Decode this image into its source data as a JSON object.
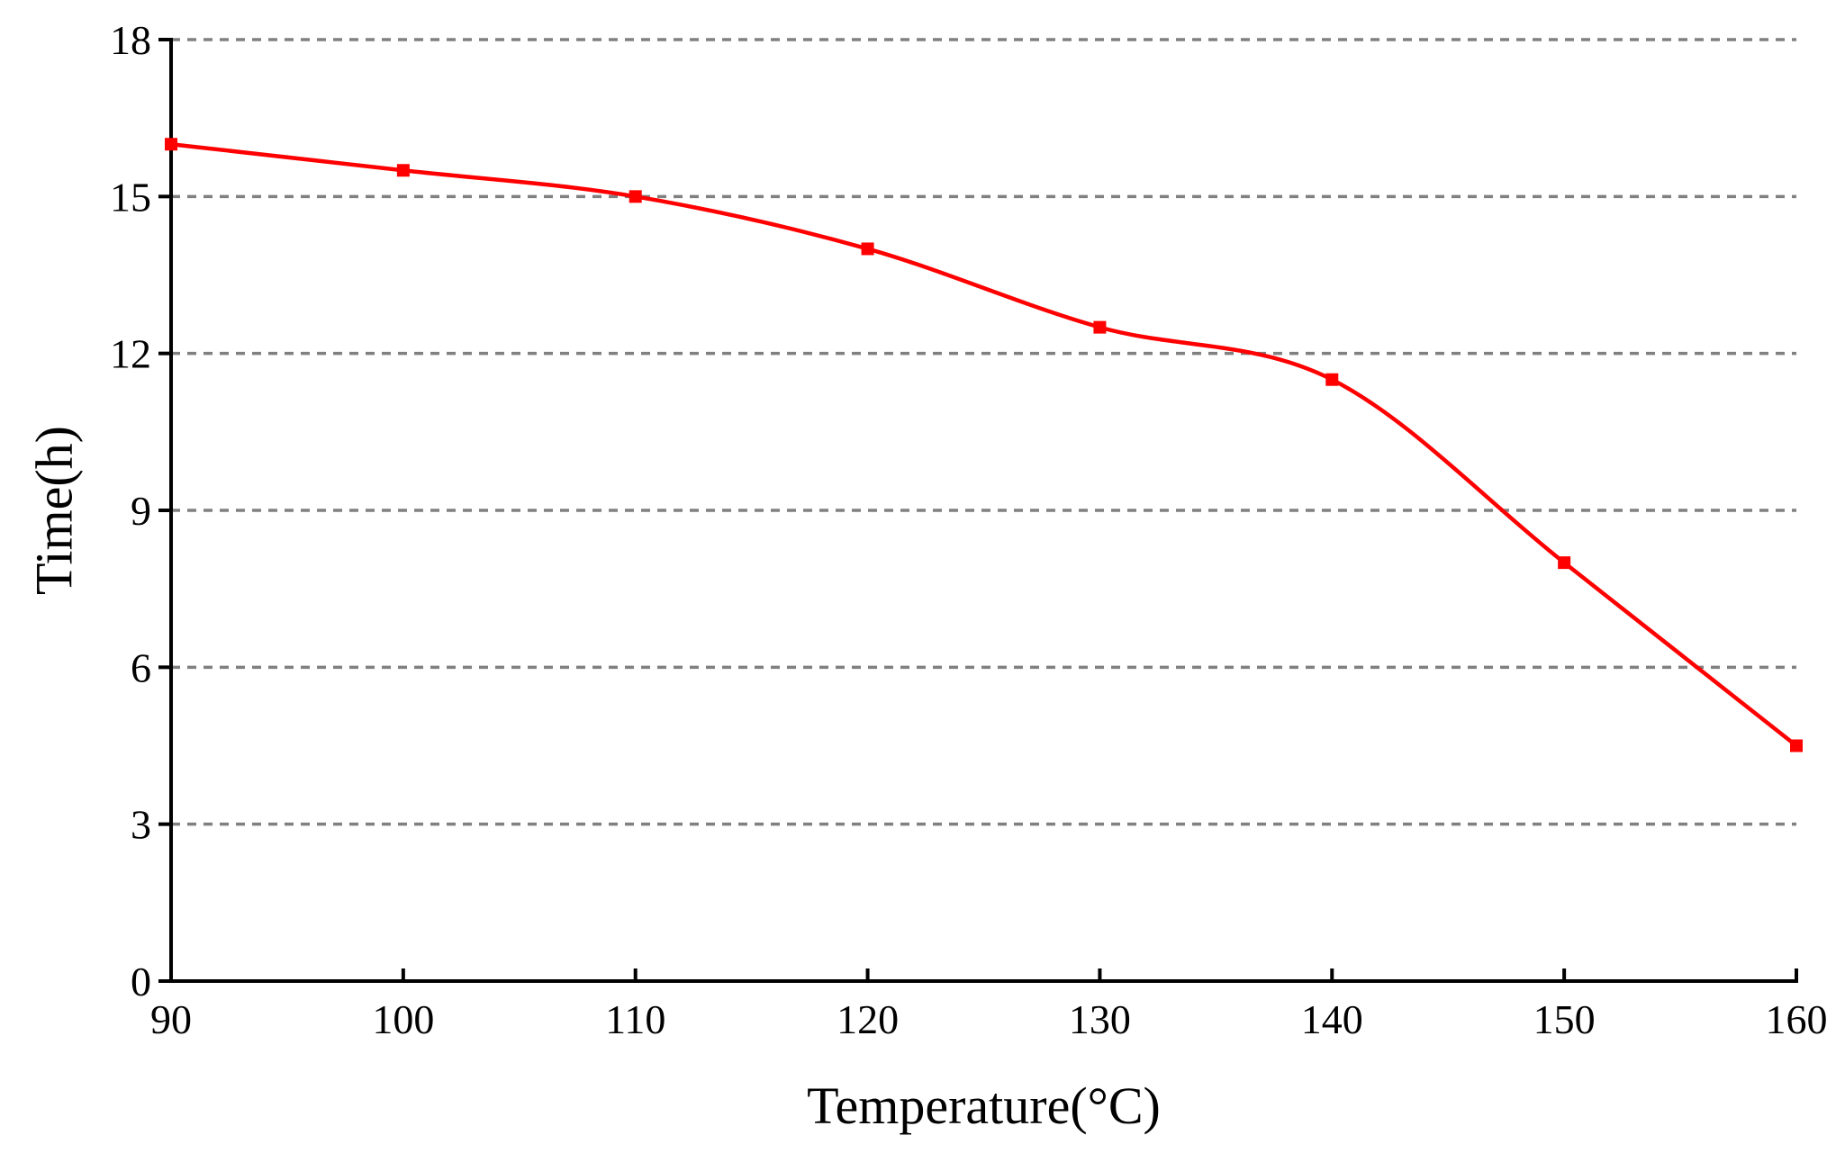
{
  "chart_data": {
    "type": "line",
    "title": "",
    "xlabel": "Temperature(°C)",
    "ylabel": "Time(h)",
    "xlim": [
      90,
      160
    ],
    "ylim": [
      0,
      18
    ],
    "xticks": [
      90,
      100,
      110,
      120,
      130,
      140,
      150,
      160
    ],
    "yticks": [
      0,
      3,
      6,
      9,
      12,
      15,
      18
    ],
    "grid": "horizontal dashed",
    "series": [
      {
        "name": "Time",
        "color": "#ff0000",
        "marker": "square",
        "x": [
          90,
          100,
          110,
          120,
          130,
          140,
          150,
          160
        ],
        "y": [
          16,
          15.5,
          15,
          14,
          12.5,
          11.5,
          8,
          4.5
        ]
      }
    ]
  },
  "colors": {
    "line": "#ff0000",
    "grid": "#808080",
    "axis": "#000000"
  }
}
